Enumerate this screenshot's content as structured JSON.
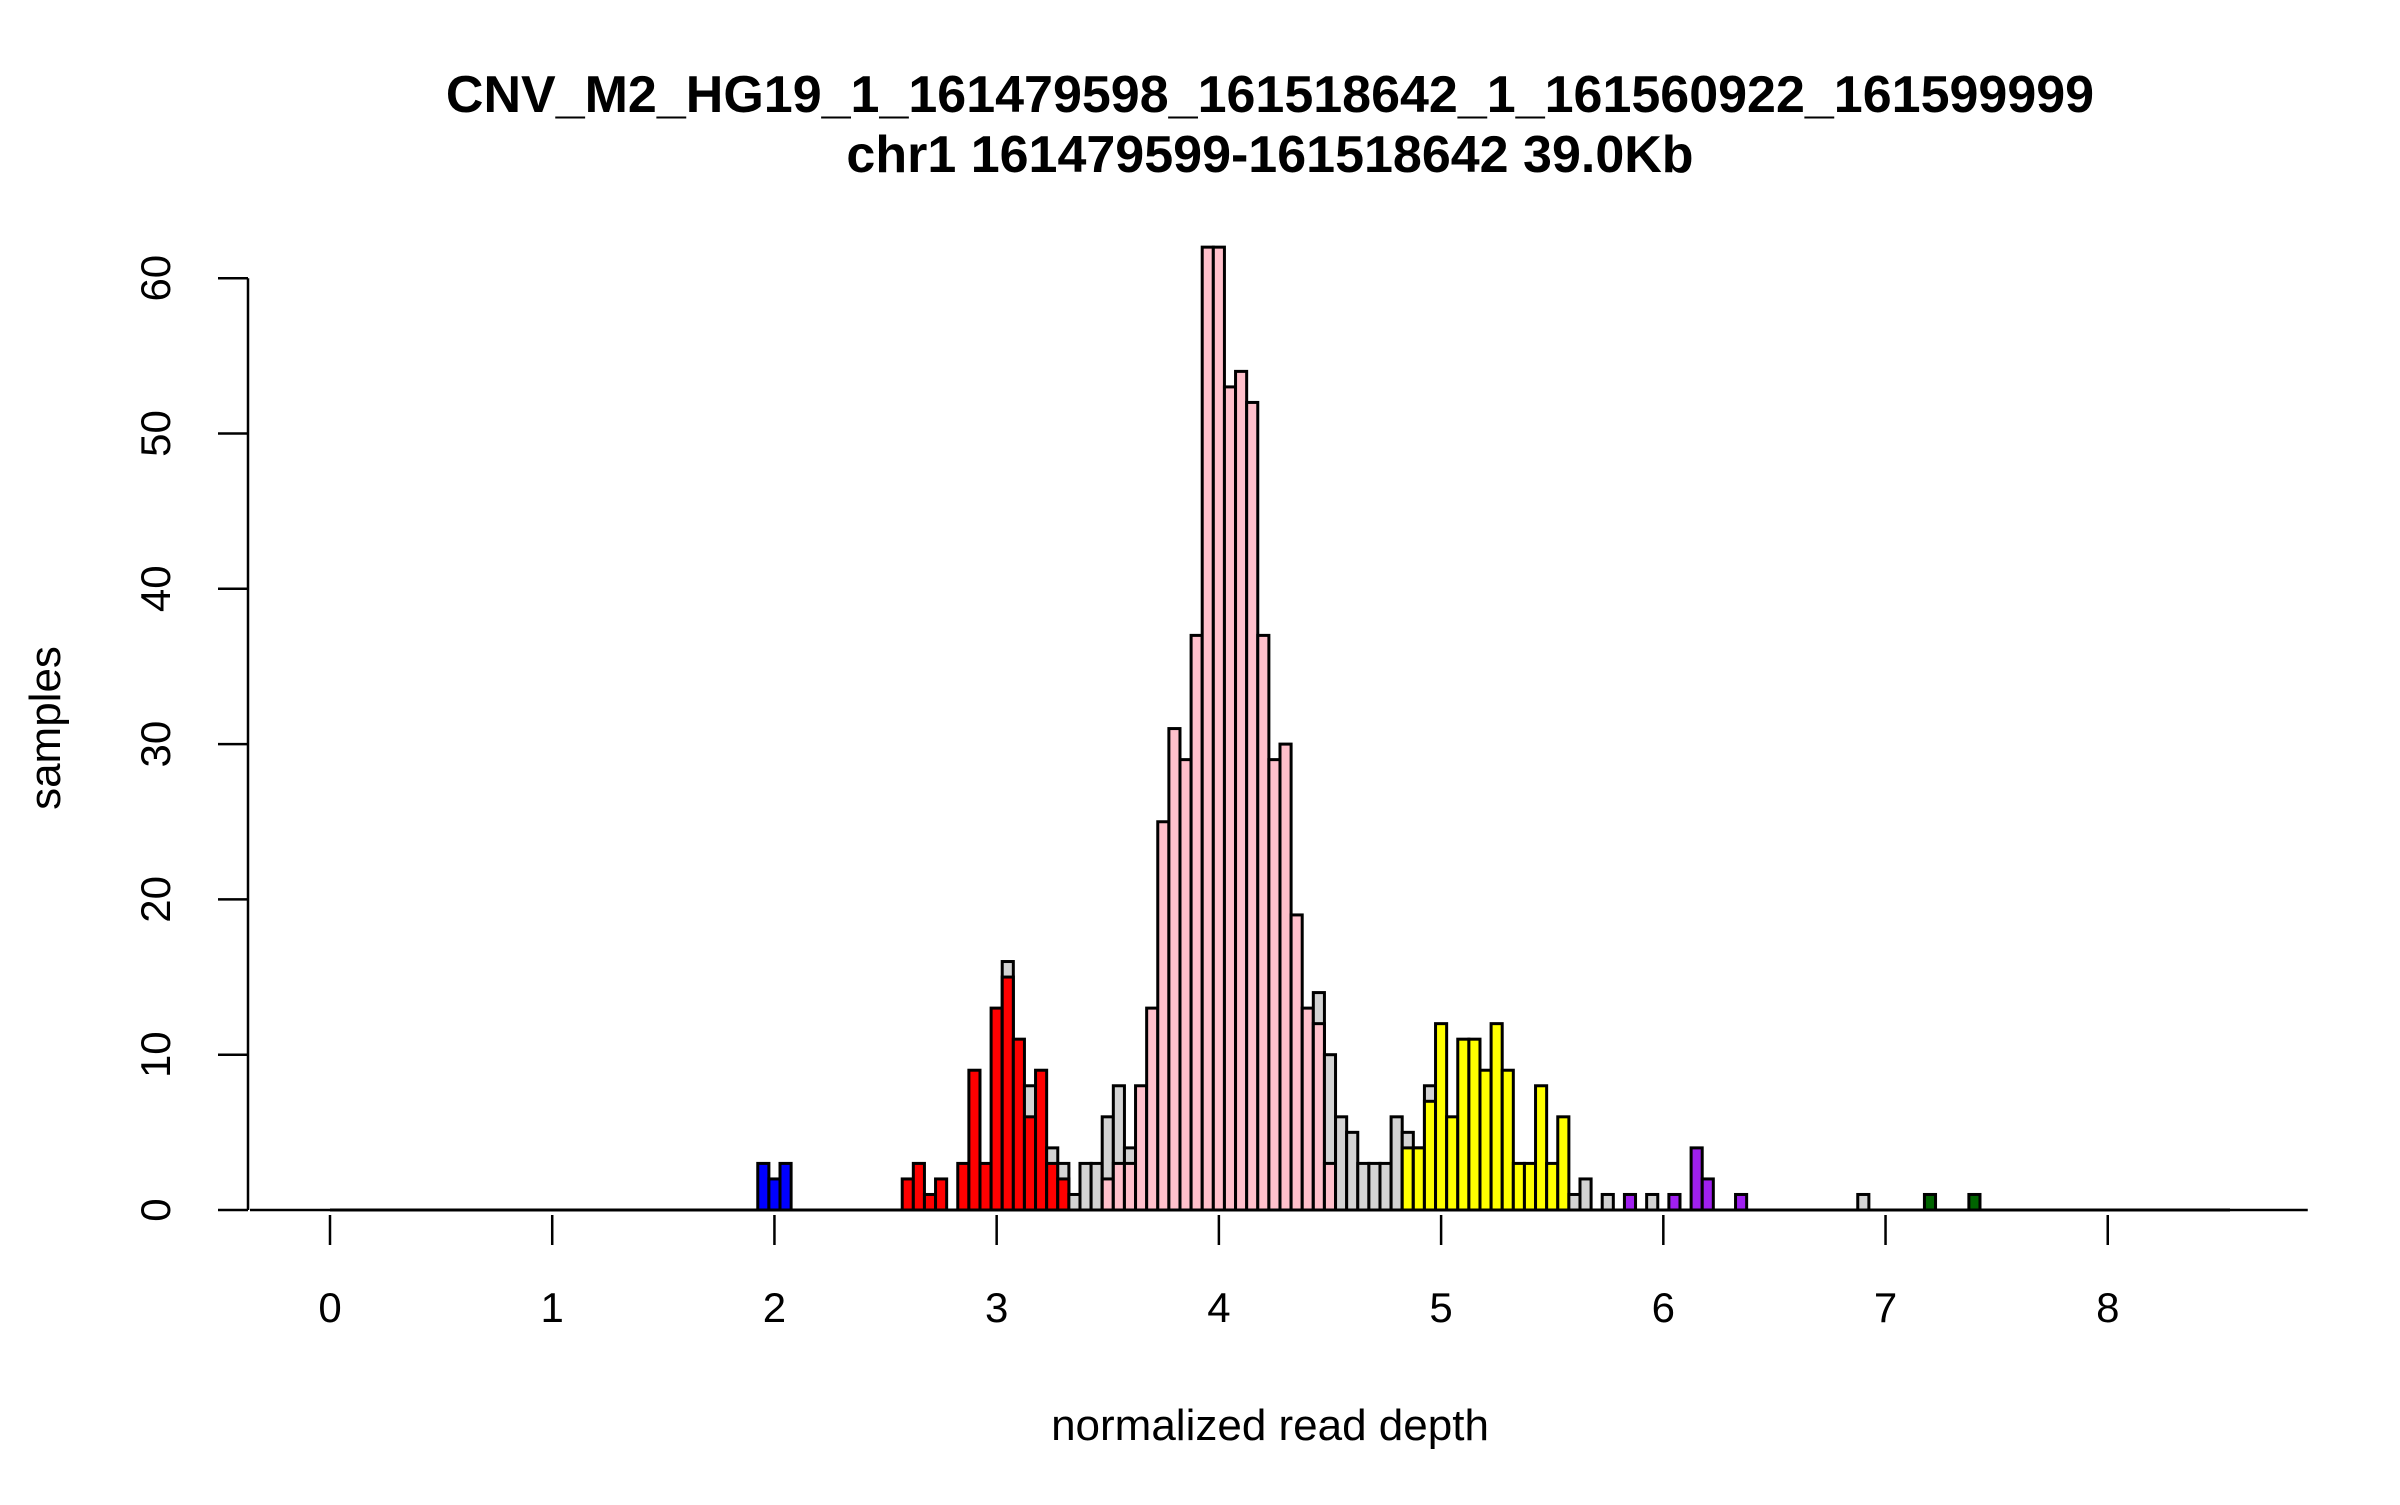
{
  "chart_data": {
    "type": "bar",
    "title": "CNV_M2_HG19_1_161479598_161518642_1_161560922_161599999",
    "subtitle": "chr1 161479599-161518642 39.0Kb",
    "xlabel": "normalized read depth",
    "ylabel": "samples",
    "xlim": [
      0,
      8.9
    ],
    "ylim": [
      0,
      62
    ],
    "x_ticks": [
      0,
      1,
      2,
      3,
      4,
      5,
      6,
      7,
      8
    ],
    "y_ticks": [
      0,
      10,
      20,
      30,
      40,
      50,
      60
    ],
    "bin_width": 0.05,
    "x_range": [
      0,
      8.55
    ],
    "colors": {
      "background": "#ffffff",
      "axis": "#000000",
      "bar_outline": "#000000",
      "copy_number_2": "#0000ff",
      "copy_number_3": "#ff0000",
      "copy_number_4": "#ffc0cb",
      "copy_number_5": "#ffff00",
      "copy_number_6": "#a020f0",
      "copy_number_7": "#006400",
      "unassigned": "#d3d3d3"
    },
    "bins": [
      {
        "x": 1.95,
        "count": 3,
        "color": "#0000ff"
      },
      {
        "x": 2.0,
        "count": 2,
        "color": "#0000ff"
      },
      {
        "x": 2.05,
        "count": 3,
        "color": "#0000ff"
      },
      {
        "x": 2.6,
        "count": 2,
        "color": "#ff0000"
      },
      {
        "x": 2.65,
        "count": 3,
        "color": "#ff0000"
      },
      {
        "x": 2.7,
        "count": 1,
        "color": "#ff0000"
      },
      {
        "x": 2.75,
        "count": 2,
        "color": "#ff0000"
      },
      {
        "x": 2.85,
        "count": 3,
        "color": "#ff0000"
      },
      {
        "x": 2.9,
        "count": 9,
        "color": "#ff0000"
      },
      {
        "x": 2.95,
        "count": 3,
        "color": "#ff0000"
      },
      {
        "x": 3.0,
        "count": 13,
        "color": "#ff0000"
      },
      {
        "x": 3.05,
        "count": 16,
        "color": "#d3d3d3"
      },
      {
        "x": 3.05,
        "count": 15,
        "color": "#ff0000"
      },
      {
        "x": 3.1,
        "count": 11,
        "color": "#ff0000"
      },
      {
        "x": 3.15,
        "count": 8,
        "color": "#d3d3d3"
      },
      {
        "x": 3.15,
        "count": 6,
        "color": "#ff0000"
      },
      {
        "x": 3.2,
        "count": 9,
        "color": "#ff0000"
      },
      {
        "x": 3.25,
        "count": 4,
        "color": "#d3d3d3"
      },
      {
        "x": 3.25,
        "count": 3,
        "color": "#ff0000"
      },
      {
        "x": 3.3,
        "count": 3,
        "color": "#d3d3d3"
      },
      {
        "x": 3.3,
        "count": 2,
        "color": "#ff0000"
      },
      {
        "x": 3.35,
        "count": 1,
        "color": "#d3d3d3"
      },
      {
        "x": 3.4,
        "count": 3,
        "color": "#d3d3d3"
      },
      {
        "x": 3.45,
        "count": 3,
        "color": "#d3d3d3"
      },
      {
        "x": 3.5,
        "count": 6,
        "color": "#d3d3d3"
      },
      {
        "x": 3.5,
        "count": 2,
        "color": "#ffc0cb"
      },
      {
        "x": 3.55,
        "count": 8,
        "color": "#d3d3d3"
      },
      {
        "x": 3.55,
        "count": 3,
        "color": "#ffc0cb"
      },
      {
        "x": 3.6,
        "count": 4,
        "color": "#d3d3d3"
      },
      {
        "x": 3.6,
        "count": 3,
        "color": "#ffc0cb"
      },
      {
        "x": 3.65,
        "count": 8,
        "color": "#ffc0cb"
      },
      {
        "x": 3.7,
        "count": 13,
        "color": "#ffc0cb"
      },
      {
        "x": 3.75,
        "count": 25,
        "color": "#ffc0cb"
      },
      {
        "x": 3.8,
        "count": 31,
        "color": "#ffc0cb"
      },
      {
        "x": 3.85,
        "count": 29,
        "color": "#ffc0cb"
      },
      {
        "x": 3.9,
        "count": 37,
        "color": "#ffc0cb"
      },
      {
        "x": 3.95,
        "count": 62,
        "color": "#ffc0cb"
      },
      {
        "x": 4.0,
        "count": 62,
        "color": "#ffc0cb"
      },
      {
        "x": 4.05,
        "count": 53,
        "color": "#ffc0cb"
      },
      {
        "x": 4.1,
        "count": 54,
        "color": "#ffc0cb"
      },
      {
        "x": 4.15,
        "count": 52,
        "color": "#ffc0cb"
      },
      {
        "x": 4.2,
        "count": 37,
        "color": "#ffc0cb"
      },
      {
        "x": 4.25,
        "count": 29,
        "color": "#ffc0cb"
      },
      {
        "x": 4.3,
        "count": 30,
        "color": "#ffc0cb"
      },
      {
        "x": 4.35,
        "count": 19,
        "color": "#ffc0cb"
      },
      {
        "x": 4.4,
        "count": 13,
        "color": "#ffc0cb"
      },
      {
        "x": 4.45,
        "count": 14,
        "color": "#d3d3d3"
      },
      {
        "x": 4.45,
        "count": 12,
        "color": "#ffc0cb"
      },
      {
        "x": 4.5,
        "count": 10,
        "color": "#d3d3d3"
      },
      {
        "x": 4.5,
        "count": 3,
        "color": "#ffc0cb"
      },
      {
        "x": 4.55,
        "count": 6,
        "color": "#d3d3d3"
      },
      {
        "x": 4.6,
        "count": 5,
        "color": "#d3d3d3"
      },
      {
        "x": 4.65,
        "count": 3,
        "color": "#d3d3d3"
      },
      {
        "x": 4.7,
        "count": 3,
        "color": "#d3d3d3"
      },
      {
        "x": 4.75,
        "count": 3,
        "color": "#d3d3d3"
      },
      {
        "x": 4.8,
        "count": 6,
        "color": "#d3d3d3"
      },
      {
        "x": 4.85,
        "count": 5,
        "color": "#d3d3d3"
      },
      {
        "x": 4.85,
        "count": 4,
        "color": "#ffff00"
      },
      {
        "x": 4.9,
        "count": 4,
        "color": "#d3d3d3"
      },
      {
        "x": 4.9,
        "count": 4,
        "color": "#ffff00"
      },
      {
        "x": 4.95,
        "count": 8,
        "color": "#d3d3d3"
      },
      {
        "x": 4.95,
        "count": 7,
        "color": "#ffff00"
      },
      {
        "x": 5.0,
        "count": 12,
        "color": "#ffff00"
      },
      {
        "x": 5.05,
        "count": 6,
        "color": "#ffff00"
      },
      {
        "x": 5.1,
        "count": 11,
        "color": "#ffff00"
      },
      {
        "x": 5.15,
        "count": 11,
        "color": "#ffff00"
      },
      {
        "x": 5.2,
        "count": 9,
        "color": "#ffff00"
      },
      {
        "x": 5.25,
        "count": 12,
        "color": "#ffff00"
      },
      {
        "x": 5.3,
        "count": 9,
        "color": "#ffff00"
      },
      {
        "x": 5.35,
        "count": 3,
        "color": "#ffff00"
      },
      {
        "x": 5.4,
        "count": 3,
        "color": "#ffff00"
      },
      {
        "x": 5.45,
        "count": 8,
        "color": "#ffff00"
      },
      {
        "x": 5.5,
        "count": 3,
        "color": "#ffff00"
      },
      {
        "x": 5.55,
        "count": 6,
        "color": "#ffff00"
      },
      {
        "x": 5.6,
        "count": 1,
        "color": "#d3d3d3"
      },
      {
        "x": 5.65,
        "count": 2,
        "color": "#d3d3d3"
      },
      {
        "x": 5.75,
        "count": 1,
        "color": "#d3d3d3"
      },
      {
        "x": 5.85,
        "count": 1,
        "color": "#a020f0"
      },
      {
        "x": 5.95,
        "count": 1,
        "color": "#d3d3d3"
      },
      {
        "x": 6.05,
        "count": 1,
        "color": "#a020f0"
      },
      {
        "x": 6.15,
        "count": 4,
        "color": "#a020f0"
      },
      {
        "x": 6.2,
        "count": 2,
        "color": "#a020f0"
      },
      {
        "x": 6.35,
        "count": 1,
        "color": "#a020f0"
      },
      {
        "x": 6.9,
        "count": 1,
        "color": "#d3d3d3"
      },
      {
        "x": 7.2,
        "count": 1,
        "color": "#006400"
      },
      {
        "x": 7.4,
        "count": 1,
        "color": "#006400"
      }
    ]
  }
}
